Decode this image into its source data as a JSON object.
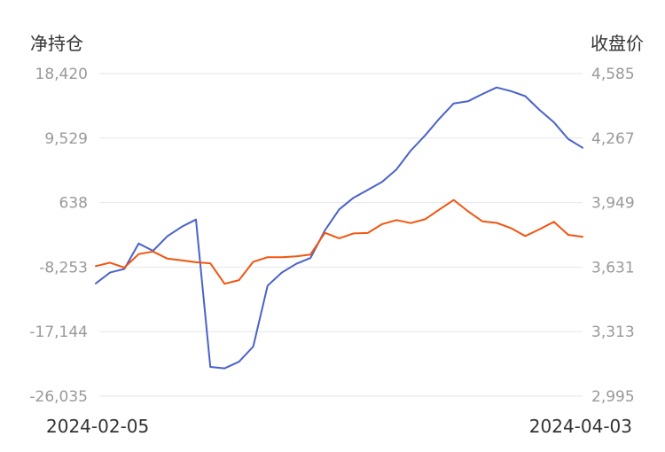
{
  "chart_data": {
    "type": "line",
    "left_axis": {
      "title": "净持仓",
      "ticks": [
        "18,420",
        "9,529",
        "638",
        "-8,253",
        "-17,144",
        "-26,035"
      ],
      "ylim": [
        -26035,
        18420
      ]
    },
    "right_axis": {
      "title": "收盘价",
      "ticks": [
        "4,585",
        "4,267",
        "3,949",
        "3,631",
        "3,313",
        "2,995"
      ],
      "ylim": [
        2995,
        4585
      ]
    },
    "x_start_label": "2024-02-05",
    "x_end_label": "2024-04-03",
    "grid": true,
    "series": [
      {
        "axis": "left",
        "color": "#4a62c8",
        "values": [
          -10500,
          -9000,
          -8500,
          -5000,
          -6000,
          -4000,
          -2700,
          -1700,
          -22000,
          -22200,
          -21300,
          -19200,
          -10800,
          -9000,
          -7800,
          -7000,
          -3200,
          -300,
          1300,
          2400,
          3500,
          5200,
          7800,
          9900,
          12200,
          14300,
          14600,
          15600,
          16500,
          16000,
          15300,
          13400,
          11700,
          9400,
          8200
        ]
      },
      {
        "axis": "right",
        "color": "#f0550f",
        "values": [
          3636,
          3653,
          3629,
          3695,
          3708,
          3673,
          3664,
          3655,
          3650,
          3549,
          3567,
          3657,
          3680,
          3680,
          3684,
          3693,
          3800,
          3773,
          3797,
          3799,
          3843,
          3863,
          3848,
          3867,
          3915,
          3962,
          3906,
          3857,
          3849,
          3823,
          3784,
          3818,
          3854,
          3790,
          3781
        ]
      }
    ]
  }
}
